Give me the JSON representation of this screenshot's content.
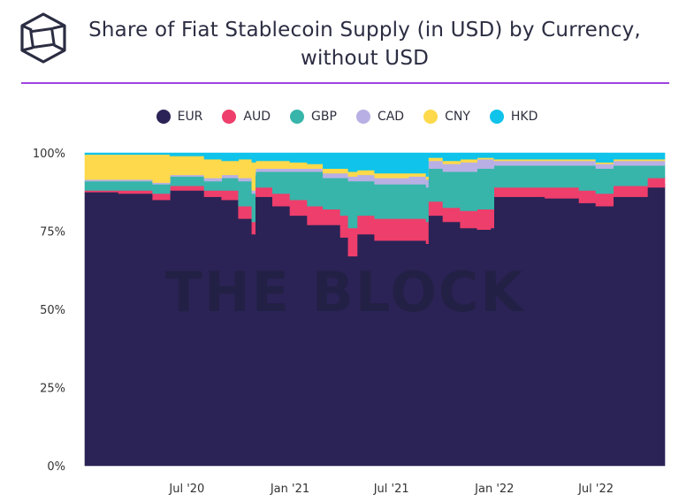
{
  "chart_data": {
    "type": "area",
    "stacked": true,
    "normalized": true,
    "title": "Share of Fiat Stablecoin Supply (in USD) by Currency, without USD",
    "watermark": "THE BLOCK",
    "legend_position": "top-center",
    "y_ticks": [
      "100%",
      "75%",
      "50%",
      "25%",
      "0%"
    ],
    "x_ticks": [
      "Jul '20",
      "Jan '21",
      "Jul '21",
      "Jan '22",
      "Jul '22"
    ],
    "x_tick_dates": [
      "2020-07-01",
      "2021-01-01",
      "2021-07-01",
      "2022-01-01",
      "2022-07-01"
    ],
    "ylim": [
      0,
      100
    ],
    "x": [
      "2020-01-01",
      "2020-03-01",
      "2020-05-01",
      "2020-06-01",
      "2020-08-01",
      "2020-09-01",
      "2020-10-01",
      "2020-10-25",
      "2020-10-31",
      "2020-11-01",
      "2020-12-01",
      "2021-01-01",
      "2021-02-01",
      "2021-03-01",
      "2021-04-01",
      "2021-04-15",
      "2021-05-01",
      "2021-06-01",
      "2021-07-01",
      "2021-08-01",
      "2021-09-01",
      "2021-09-05",
      "2021-10-01",
      "2021-11-01",
      "2021-12-01",
      "2021-12-25",
      "2021-12-31",
      "2022-02-01",
      "2022-04-01",
      "2022-06-01",
      "2022-07-01",
      "2022-08-01",
      "2022-10-01",
      "2022-11-01"
    ],
    "series": [
      {
        "name": "EUR",
        "color": "#2b2356",
        "values": [
          87.5,
          87,
          85,
          88,
          86,
          85,
          79,
          74,
          87,
          86,
          83,
          80,
          77,
          77,
          73,
          67,
          74,
          72,
          72,
          72,
          71,
          80,
          78,
          76,
          75.5,
          76,
          86,
          86,
          85.5,
          84,
          83,
          86,
          89,
          90
        ]
      },
      {
        "name": "AUD",
        "color": "#ee3e6b",
        "values": [
          0.5,
          1,
          2,
          1.5,
          2,
          3,
          4,
          4,
          2,
          3,
          4,
          5,
          6,
          5,
          7,
          9,
          6,
          7,
          7,
          7,
          7,
          4.5,
          4.5,
          5.5,
          6.5,
          6,
          3,
          3,
          3.5,
          4,
          4,
          3.5,
          3,
          2.5
        ]
      },
      {
        "name": "GBP",
        "color": "#37b5aa",
        "values": [
          3,
          3,
          3,
          3,
          3,
          4,
          8,
          9,
          4,
          5,
          7,
          9,
          11,
          10,
          12,
          15,
          11,
          11,
          11,
          11,
          11,
          10.5,
          11.5,
          12.5,
          13,
          13,
          7,
          7,
          7,
          8,
          8,
          6.5,
          4,
          4
        ]
      },
      {
        "name": "CAD",
        "color": "#b8b0e4",
        "values": [
          0.5,
          0.5,
          0.5,
          0.5,
          1,
          1,
          1,
          1,
          1,
          1,
          1,
          1,
          1,
          1.5,
          1.5,
          1.5,
          2,
          2,
          2,
          2.5,
          2.5,
          2.5,
          2.5,
          3,
          3,
          3,
          1.5,
          1.5,
          1.5,
          1.5,
          1.5,
          1.5,
          1.5,
          1.5
        ]
      },
      {
        "name": "CNY",
        "color": "#fdd94b",
        "values": [
          8,
          8,
          9,
          6,
          6,
          4.5,
          6,
          9,
          3,
          2.5,
          2.5,
          2,
          1.5,
          1.5,
          1.5,
          1.5,
          1.5,
          1.5,
          1.5,
          1,
          1,
          1,
          1,
          1,
          0.5,
          0.5,
          0.5,
          0.5,
          0.5,
          0.5,
          0.5,
          0.5,
          0.5,
          0.5
        ]
      },
      {
        "name": "HKD",
        "color": "#0fc3ea",
        "values": [
          0.5,
          0.5,
          0.5,
          1,
          2,
          2.5,
          2,
          3,
          3,
          2.5,
          2.5,
          3,
          3.5,
          5,
          5,
          6,
          5.5,
          6.5,
          6.5,
          6.5,
          7.5,
          1.5,
          2.5,
          2,
          1.5,
          1.5,
          2,
          2,
          2,
          2,
          3,
          2,
          2,
          1.5
        ]
      }
    ]
  }
}
